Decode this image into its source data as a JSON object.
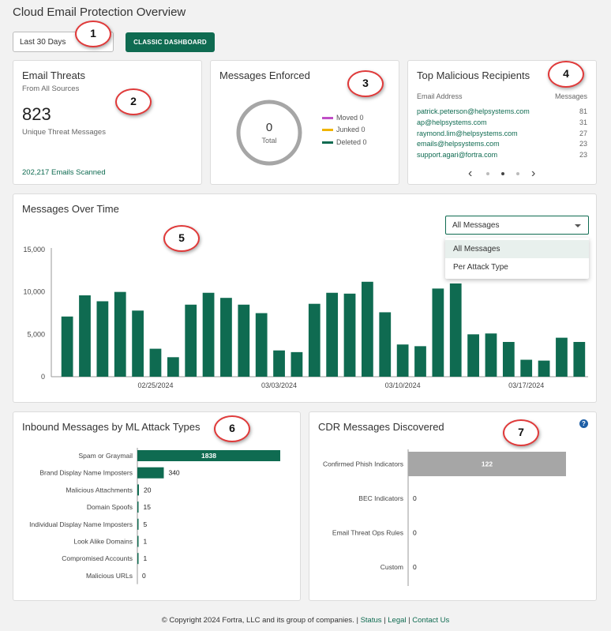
{
  "page": {
    "title": "Cloud Email Protection Overview",
    "range_select": "Last 30 Days",
    "classic_button": "CLASSIC DASHBOARD"
  },
  "badges": [
    "1",
    "2",
    "3",
    "4",
    "5",
    "6",
    "7"
  ],
  "email_threats": {
    "title": "Email Threats",
    "subtitle": "From All Sources",
    "count": "823",
    "count_label": "Unique Threat Messages",
    "scanned": "202,217 Emails Scanned"
  },
  "messages_enforced": {
    "title": "Messages Enforced",
    "total_value": "0",
    "total_label": "Total",
    "legend": [
      {
        "label": "Moved 0",
        "color": "#c04fc6"
      },
      {
        "label": "Junked 0",
        "color": "#f0b400"
      },
      {
        "label": "Deleted 0",
        "color": "#0f6b51"
      }
    ]
  },
  "top_recipients": {
    "title": "Top Malicious Recipients",
    "col_email": "Email Address",
    "col_messages": "Messages",
    "rows": [
      {
        "email": "patrick.peterson@helpsystems.com",
        "count": "81"
      },
      {
        "email": "ap@helpsystems.com",
        "count": "31"
      },
      {
        "email": "raymond.lim@helpsystems.com",
        "count": "27"
      },
      {
        "email": "emails@helpsystems.com",
        "count": "23"
      },
      {
        "email": "support.agari@fortra.com",
        "count": "23"
      }
    ],
    "prev": "‹",
    "next": "›",
    "pages": 3,
    "active_page": 2
  },
  "messages_over_time": {
    "title": "Messages Over Time",
    "dropdown_value": "All Messages",
    "dropdown_options": [
      "All Messages",
      "Per Attack Type"
    ]
  },
  "ml_attack": {
    "title": "Inbound Messages by ML Attack Types"
  },
  "cdr": {
    "title": "CDR Messages Discovered",
    "help": "?"
  },
  "footer": {
    "copyright": "© Copyright 2024 Fortra, LLC and its group of companies. | ",
    "status": "Status",
    "sep1": " | ",
    "legal": "Legal",
    "sep2": " | ",
    "contact": "Contact Us"
  },
  "chart_data": [
    {
      "type": "bar",
      "title": "Messages Over Time",
      "x_tick_labels": [
        "02/25/2024",
        "03/03/2024",
        "03/10/2024",
        "03/17/2024"
      ],
      "y_tick_labels": [
        "0",
        "5,000",
        "10,000",
        "15,000"
      ],
      "ylim": [
        0,
        15000
      ],
      "color": "#0f6b51",
      "values": [
        7100,
        9600,
        8900,
        10000,
        7800,
        3300,
        2300,
        8500,
        9900,
        9300,
        8500,
        7500,
        3100,
        2900,
        8600,
        9900,
        9800,
        11200,
        7600,
        3800,
        3600,
        10400,
        11000,
        5000,
        5100,
        4100,
        2000,
        1900,
        4600,
        4100
      ]
    },
    {
      "type": "bar",
      "orientation": "horizontal",
      "title": "Inbound Messages by ML Attack Types",
      "categories": [
        "Spam or Graymail",
        "Brand Display Name Imposters",
        "Malicious Attachments",
        "Domain Spoofs",
        "Individual Display Name Imposters",
        "Look Alike Domains",
        "Compromised Accounts",
        "Malicious URLs"
      ],
      "values": [
        1838,
        340,
        20,
        15,
        5,
        1,
        1,
        0
      ],
      "value_labels": [
        "1838",
        "340",
        "20",
        "15",
        "5",
        "1",
        "1",
        "0"
      ],
      "color": "#0f6b51"
    },
    {
      "type": "bar",
      "orientation": "horizontal",
      "title": "CDR Messages Discovered",
      "categories": [
        "Confirmed Phish Indicators",
        "BEC Indicators",
        "Email Threat Ops Rules",
        "Custom"
      ],
      "values": [
        122,
        0,
        0,
        0
      ],
      "value_labels": [
        "122",
        "0",
        "0",
        "0"
      ],
      "color": "#a6a6a6"
    }
  ]
}
